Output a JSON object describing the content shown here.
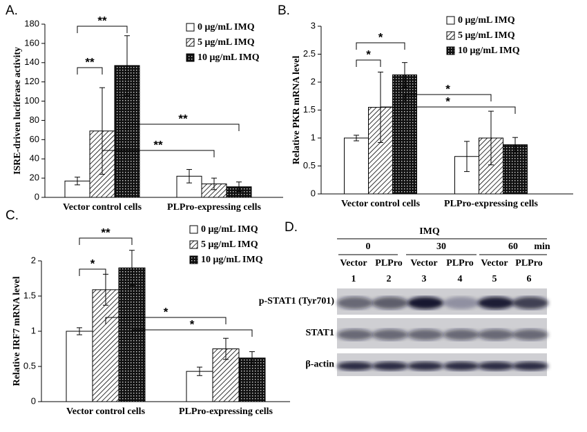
{
  "chart_data": [
    {
      "type": "bar",
      "label": "A.",
      "ylabel": "ISRE-driven luciferase activity",
      "categories": [
        "Vector control cells",
        "PLPro-expressing cells"
      ],
      "series": [
        {
          "name": "0 μg/mL IMQ",
          "fill": "white",
          "values": [
            17,
            22
          ],
          "errors": [
            4,
            7
          ]
        },
        {
          "name": "5 μg/mL IMQ",
          "fill": "hatch",
          "values": [
            69,
            14
          ],
          "errors": [
            45,
            6
          ]
        },
        {
          "name": "10 μg/mL IMQ",
          "fill": "dots",
          "values": [
            137,
            11
          ],
          "errors": [
            31,
            5
          ]
        }
      ],
      "ylim": [
        0,
        180
      ],
      "yticks": [
        0,
        20,
        40,
        60,
        80,
        100,
        120,
        140,
        160,
        180
      ],
      "annotations": [
        "**",
        "**",
        "**",
        "**"
      ]
    },
    {
      "type": "bar",
      "label": "B.",
      "ylabel": "Relative PKR mRNA level",
      "categories": [
        "Vector control cells",
        "PLPro-expressing cells"
      ],
      "series": [
        {
          "name": "0 μg/mL IMQ",
          "fill": "white",
          "values": [
            1.0,
            0.67
          ],
          "errors": [
            0.05,
            0.27
          ]
        },
        {
          "name": "5 μg/mL IMQ",
          "fill": "hatch",
          "values": [
            1.55,
            1.0
          ],
          "errors": [
            0.63,
            0.48
          ]
        },
        {
          "name": "10 μg/mL IMQ",
          "fill": "dots",
          "values": [
            2.13,
            0.88
          ],
          "errors": [
            0.22,
            0.13
          ]
        }
      ],
      "ylim": [
        0,
        3
      ],
      "yticks": [
        0,
        0.5,
        1,
        1.5,
        2,
        2.5,
        3
      ],
      "annotations": [
        "*",
        "*",
        "*",
        "*"
      ]
    },
    {
      "type": "bar",
      "label": "C.",
      "ylabel": "Relative IRF7 mRNA level",
      "categories": [
        "Vector control cells",
        "PLPro-expressing cells"
      ],
      "series": [
        {
          "name": "0 μg/mL IMQ",
          "fill": "white",
          "values": [
            1.0,
            0.43
          ],
          "errors": [
            0.05,
            0.06
          ]
        },
        {
          "name": "5 μg/mL IMQ",
          "fill": "hatch",
          "values": [
            1.59,
            0.75
          ],
          "errors": [
            0.22,
            0.15
          ]
        },
        {
          "name": "10 μg/mL IMQ",
          "fill": "dots",
          "values": [
            1.9,
            0.62
          ],
          "errors": [
            0.25,
            0.09
          ]
        }
      ],
      "ylim": [
        0,
        2
      ],
      "yticks": [
        0,
        0.5,
        1,
        1.5,
        2
      ],
      "annotations": [
        "**",
        "*",
        "*",
        "*"
      ]
    }
  ],
  "blot": {
    "label": "D.",
    "treatment": "IMQ",
    "times": [
      "0",
      "30",
      "60"
    ],
    "time_unit": "min",
    "lanes": [
      "Vector",
      "PLPro",
      "Vector",
      "PLPro",
      "Vector",
      "PLPro"
    ],
    "lane_numbers": [
      1,
      2,
      3,
      4,
      5,
      6
    ],
    "rows": [
      "p-STAT1 (Tyr701)",
      "STAT1",
      "β-actin"
    ]
  }
}
